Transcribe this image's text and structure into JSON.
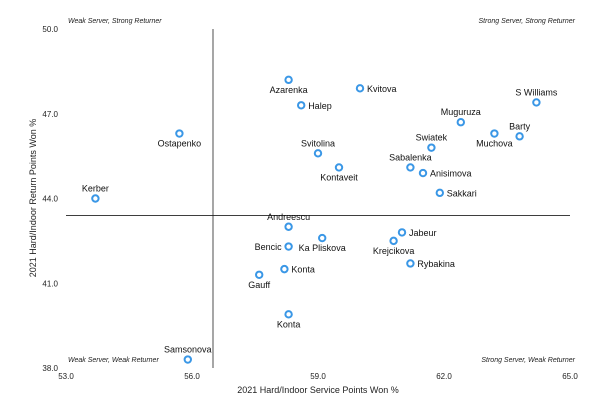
{
  "chart_data": {
    "type": "scatter",
    "title": "",
    "xlabel": "2021 Hard/Indoor Service Points Won %",
    "ylabel": "2021 Hard/Indoor Return Points Won %",
    "xlim": [
      53.0,
      65.0
    ],
    "ylim": [
      38.0,
      50.0
    ],
    "xticks": [
      "53.0",
      "56.0",
      "59.0",
      "62.0",
      "65.0"
    ],
    "yticks": [
      "38.0",
      "41.0",
      "44.0",
      "47.0",
      "50.0"
    ],
    "reference_x": 56.5,
    "reference_y": 43.4,
    "quadrants": {
      "top_left": "Weak Server, Strong Returner",
      "top_right": "Strong Server, Strong Returner",
      "bottom_left": "Weak Server, Weak Returner",
      "bottom_right": "Strong Server, Weak Returner"
    },
    "points": [
      {
        "label": "Azarenka",
        "x": 58.3,
        "y": 48.2,
        "pos": "below"
      },
      {
        "label": "Kvitova",
        "x": 60.0,
        "y": 47.9,
        "pos": "right"
      },
      {
        "label": "Halep",
        "x": 58.6,
        "y": 47.3,
        "pos": "right"
      },
      {
        "label": "S Williams",
        "x": 64.2,
        "y": 47.4,
        "pos": "above"
      },
      {
        "label": "Muguruza",
        "x": 62.4,
        "y": 46.7,
        "pos": "above"
      },
      {
        "label": "Muchova",
        "x": 63.2,
        "y": 46.3,
        "pos": "below"
      },
      {
        "label": "Barty",
        "x": 63.8,
        "y": 46.2,
        "pos": "above"
      },
      {
        "label": "Ostapenko",
        "x": 55.7,
        "y": 46.3,
        "pos": "below"
      },
      {
        "label": "Svitolina",
        "x": 59.0,
        "y": 45.6,
        "pos": "above"
      },
      {
        "label": "Swiatek",
        "x": 61.7,
        "y": 45.8,
        "pos": "above"
      },
      {
        "label": "Sabalenka",
        "x": 61.2,
        "y": 45.1,
        "pos": "above"
      },
      {
        "label": "Kontaveit",
        "x": 59.5,
        "y": 45.1,
        "pos": "below"
      },
      {
        "label": "Anisimova",
        "x": 61.5,
        "y": 44.9,
        "pos": "right"
      },
      {
        "label": "Sakkari",
        "x": 61.9,
        "y": 44.2,
        "pos": "right"
      },
      {
        "label": "Kerber",
        "x": 53.7,
        "y": 44.0,
        "pos": "above"
      },
      {
        "label": "Andreescu",
        "x": 58.3,
        "y": 43.0,
        "pos": "above"
      },
      {
        "label": "Jabeur",
        "x": 61.0,
        "y": 42.8,
        "pos": "right"
      },
      {
        "label": "Ka Pliskova",
        "x": 59.1,
        "y": 42.6,
        "pos": "below"
      },
      {
        "label": "Krejcikova",
        "x": 60.8,
        "y": 42.5,
        "pos": "below"
      },
      {
        "label": "Bencic",
        "x": 58.3,
        "y": 42.3,
        "pos": "left"
      },
      {
        "label": "Rybakina",
        "x": 61.2,
        "y": 41.7,
        "pos": "right"
      },
      {
        "label": "Konta",
        "x": 58.2,
        "y": 41.5,
        "pos": "right"
      },
      {
        "label": "Gauff",
        "x": 57.6,
        "y": 41.3,
        "pos": "below"
      },
      {
        "label": "Konta",
        "x": 58.3,
        "y": 39.9,
        "pos": "below"
      },
      {
        "label": "Samsonova",
        "x": 55.9,
        "y": 38.3,
        "pos": "above"
      }
    ],
    "colors": {
      "marker": "#3a97e6",
      "line": "#222222"
    }
  }
}
